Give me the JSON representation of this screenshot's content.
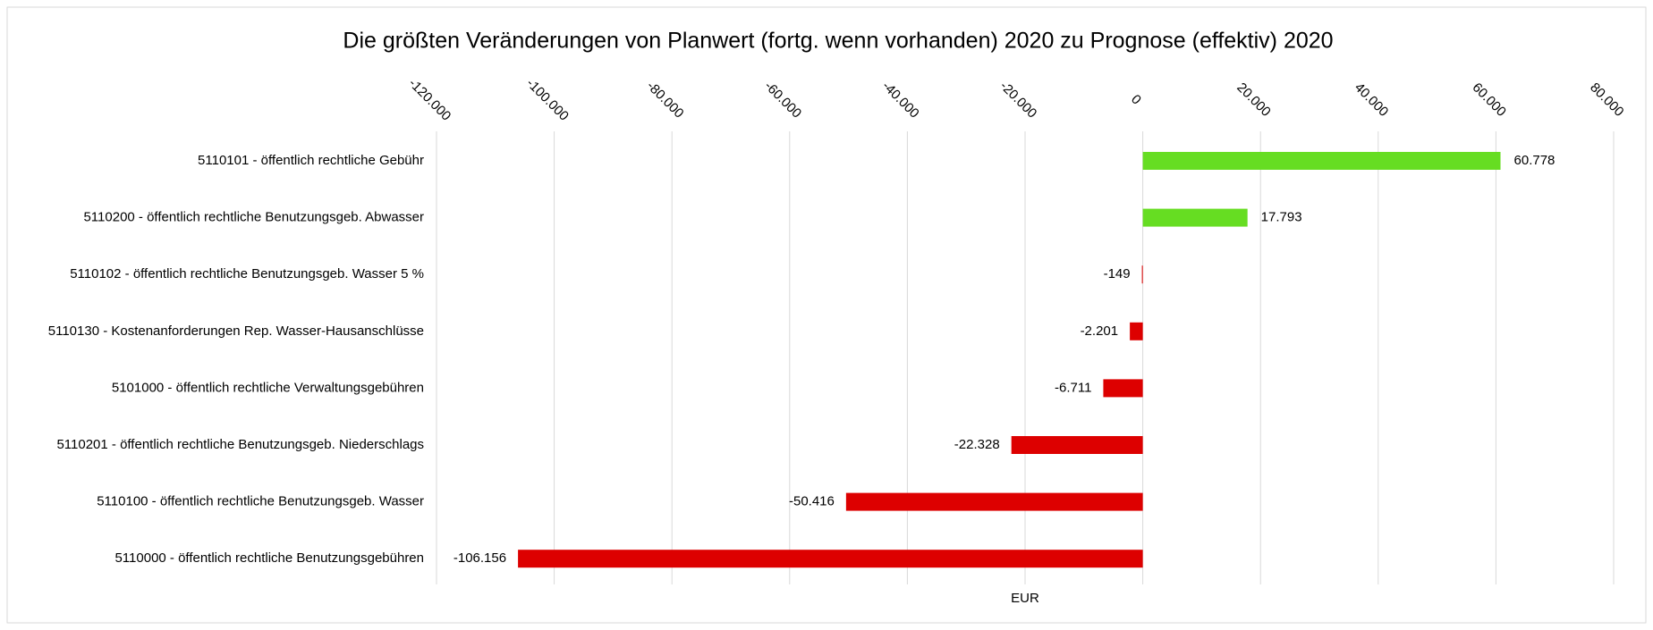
{
  "chart_data": {
    "type": "barh",
    "title": "Die größten Veränderungen von Planwert (fortg. wenn vorhanden) 2020 zu Prognose (effektiv) 2020",
    "xlabel": "EUR",
    "categories": [
      "5110101 - öffentlich rechtliche Gebühr",
      "5110200 - öffentlich rechtliche Benutzungsgeb. Abwasser",
      "5110102 - öffentlich rechtliche Benutzungsgeb. Wasser 5 %",
      "5110130 - Kostenanforderungen Rep. Wasser-Hausanschlüsse",
      "5101000 - öffentlich rechtliche Verwaltungsgebühren",
      "5110201 - öffentlich rechtliche Benutzungsgeb. Niederschlags",
      "5110100 - öffentlich rechtliche Benutzungsgeb. Wasser",
      "5110000 - öffentlich rechtliche Benutzungsgebühren"
    ],
    "values": [
      60778,
      17793,
      -149,
      -2201,
      -6711,
      -22328,
      -50416,
      -106156
    ],
    "value_labels": [
      "60.778",
      "17.793",
      "-149",
      "-2.201",
      "-6.711",
      "-22.328",
      "-50.416",
      "-106.156"
    ],
    "colors": [
      "#66dd22",
      "#66dd22",
      "#dd0000",
      "#dd0000",
      "#dd0000",
      "#dd0000",
      "#dd0000",
      "#dd0000"
    ],
    "xlim": [
      -120000,
      80000
    ],
    "xticks": [
      {
        "value": -120000,
        "label": "-120.000"
      },
      {
        "value": -100000,
        "label": "-100.000"
      },
      {
        "value": -80000,
        "label": "-80.000"
      },
      {
        "value": -60000,
        "label": "-60.000"
      },
      {
        "value": -40000,
        "label": "-40.000"
      },
      {
        "value": -20000,
        "label": "-20.000"
      },
      0,
      {
        "value": 20000,
        "label": "20.000"
      },
      {
        "value": 40000,
        "label": "40.000"
      },
      {
        "value": 60000,
        "label": "60.000"
      },
      {
        "value": 80000,
        "label": "80.000"
      }
    ],
    "grid": true
  }
}
